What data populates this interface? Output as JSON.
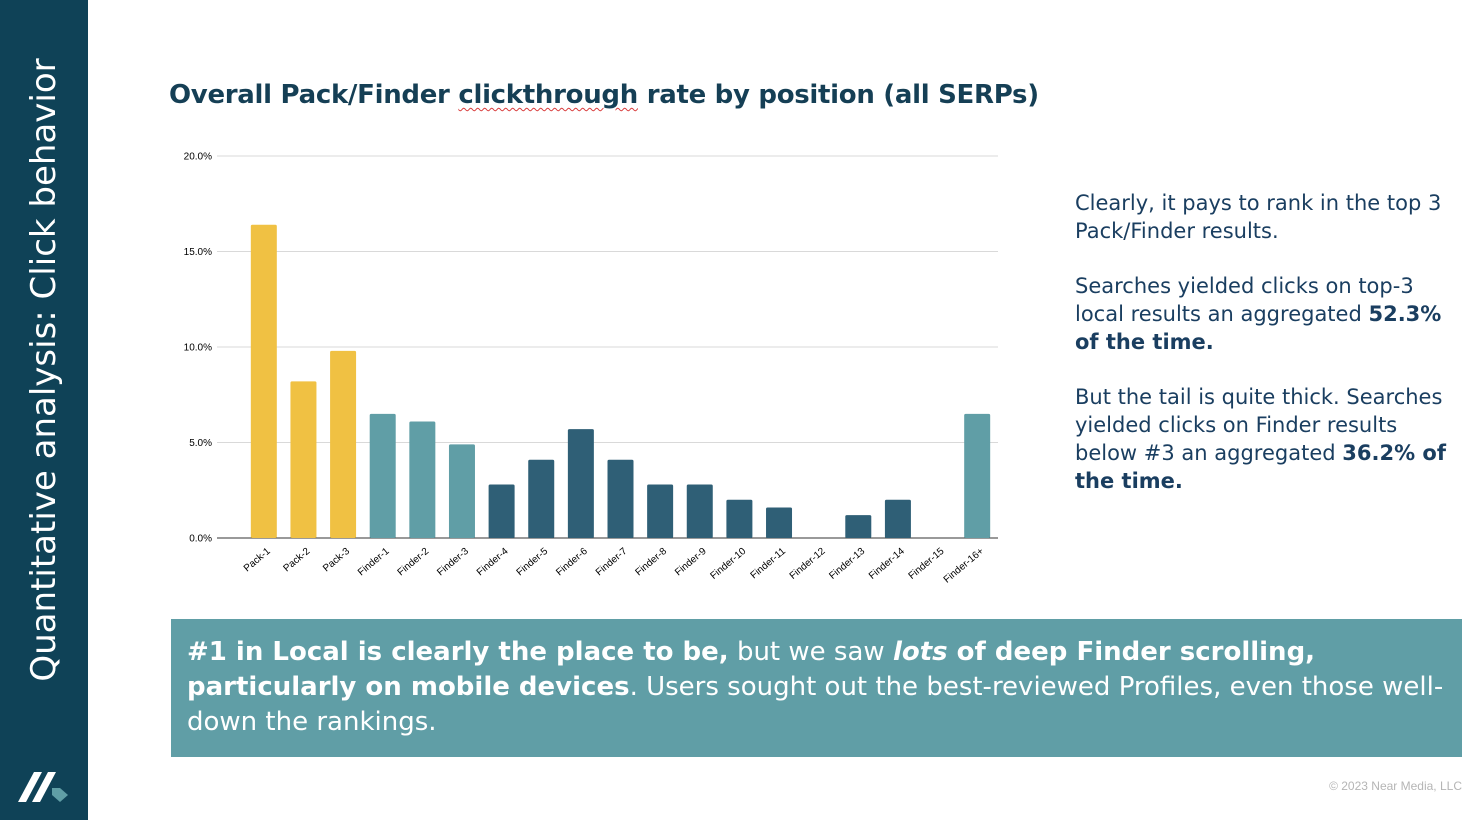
{
  "sidebar": {
    "title": "Quantitative analysis: Click behavior",
    "brand_color": "#0f4257"
  },
  "slide": {
    "title_before": "Overall Pack/Finder ",
    "title_flagged_word": "clickthrough",
    "title_after": " rate by position (all SERPs)"
  },
  "chart_data": {
    "type": "bar",
    "title": "",
    "xlabel": "",
    "ylabel": "",
    "ylim": [
      0,
      20
    ],
    "yticks": [
      "0.0%",
      "5.0%",
      "10.0%",
      "15.0%",
      "20.0%"
    ],
    "grid": true,
    "categories": [
      "Pack-1",
      "Pack-2",
      "Pack-3",
      "Finder-1",
      "Finder-2",
      "Finder-3",
      "Finder-4",
      "Finder-5",
      "Finder-6",
      "Finder-7",
      "Finder-8",
      "Finder-9",
      "Finder-10",
      "Finder-11",
      "Finder-12",
      "Finder-13",
      "Finder-14",
      "Finder-15",
      "Finder-16+"
    ],
    "values": [
      16.4,
      8.2,
      9.8,
      6.5,
      6.1,
      4.9,
      2.8,
      4.1,
      5.7,
      4.1,
      2.8,
      2.8,
      2.0,
      1.6,
      0.0,
      1.2,
      2.0,
      0.0,
      6.5
    ],
    "bar_colors": [
      "#f0c143",
      "#f0c143",
      "#f0c143",
      "#609ea6",
      "#609ea6",
      "#609ea6",
      "#2f5f76",
      "#2f5f76",
      "#2f5f76",
      "#2f5f76",
      "#2f5f76",
      "#2f5f76",
      "#2f5f76",
      "#2f5f76",
      "#2f5f76",
      "#2f5f76",
      "#2f5f76",
      "#2f5f76",
      "#609ea6"
    ]
  },
  "notes": {
    "p1": "Clearly, it pays to rank in the top 3 Pack/Finder results.",
    "p2_text": "Searches yielded clicks on top-3 local results an aggregated ",
    "p2_bold": "52.3% of the time.",
    "p3_text": "But the tail is quite thick. Searches yielded clicks on Finder results below #3 an aggregated ",
    "p3_bold": "36.2% of the time."
  },
  "banner": {
    "bold1": "#1 in Local is clearly the place to be,",
    "text1": " but we saw ",
    "italic_bold": "lots",
    "bold2": " of deep Finder scrolling, particularly on mobile devices",
    "text2": ". Users sought out the best-reviewed Profiles, even those well-down the rankings.",
    "background": "#609ea6"
  },
  "footer": {
    "copyright": "© 2023 Near Media, LLC"
  }
}
